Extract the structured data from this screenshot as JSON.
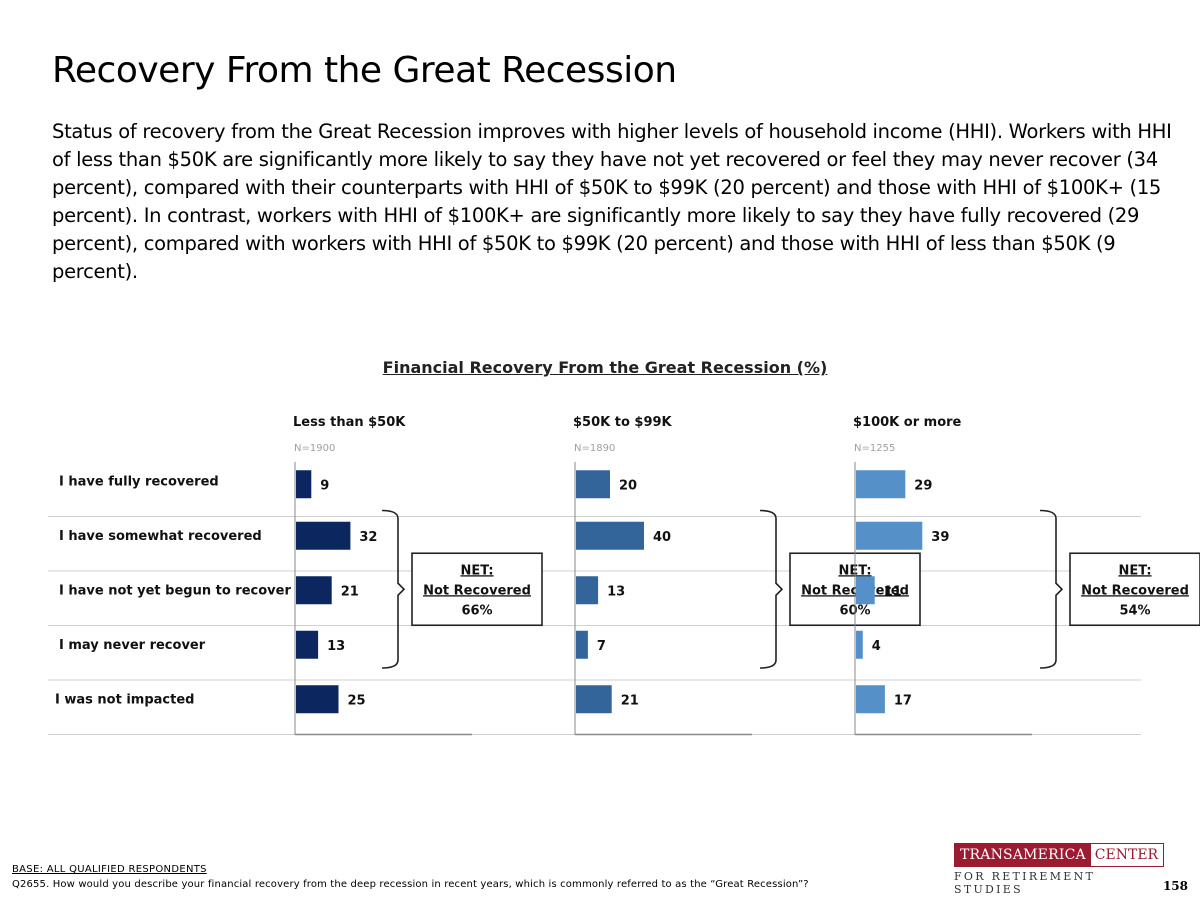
{
  "title": "Recovery From the Great Recession",
  "intro": "Status of recovery from the Great Recession improves with higher levels of household income (HHI). Workers with HHI of less than $50K are significantly more likely to say they have not yet recovered or feel they may never recover (34 percent), compared with their counterparts with HHI of $50K to $99K (20 percent) and those with HHI of $100K+ (15 percent). In contrast, workers with HHI of $100K+ are significantly more likely to say they have fully recovered (29 percent), compared with workers with HHI of $50K to $99K (20 percent) and those with HHI of less than $50K (9 percent).",
  "chart_data": {
    "type": "bar",
    "title": "Financial Recovery From the Great Recession (%)",
    "categories": [
      "I have fully recovered",
      "I have somewhat recovered",
      "I have not yet begun to recover",
      "I may never recover",
      "I was not impacted"
    ],
    "series": [
      {
        "name": "Less than $50K",
        "n": "N=1900",
        "values": [
          9,
          32,
          21,
          13,
          25
        ],
        "color": "#0c2660",
        "net_label": "NET:",
        "net_sub": "Not Recovered",
        "net_value": "66%"
      },
      {
        "name": "$50K to $99K",
        "n": "N=1890",
        "values": [
          20,
          40,
          13,
          7,
          21
        ],
        "color": "#33659a",
        "net_label": "NET:",
        "net_sub": "Not Recovered",
        "net_value": "60%"
      },
      {
        "name": "$100K or more",
        "n": "N=1255",
        "values": [
          29,
          39,
          11,
          4,
          17
        ],
        "color": "#5590c8",
        "net_label": "NET:",
        "net_sub": "Not Recovered",
        "net_value": "54%"
      }
    ],
    "xlim": [
      0,
      100
    ]
  },
  "footer": {
    "base": "BASE: ALL QUALIFIED RESPONDENTS",
    "question": "Q2655. How would you describe your financial recovery from the deep recession in recent years, which is commonly referred to as the “Great Recession”?",
    "page": "158"
  },
  "logo": {
    "left": "TRANSAMERICA",
    "right": "CENTER",
    "bottom": "FOR RETIREMENT STUDIES"
  }
}
